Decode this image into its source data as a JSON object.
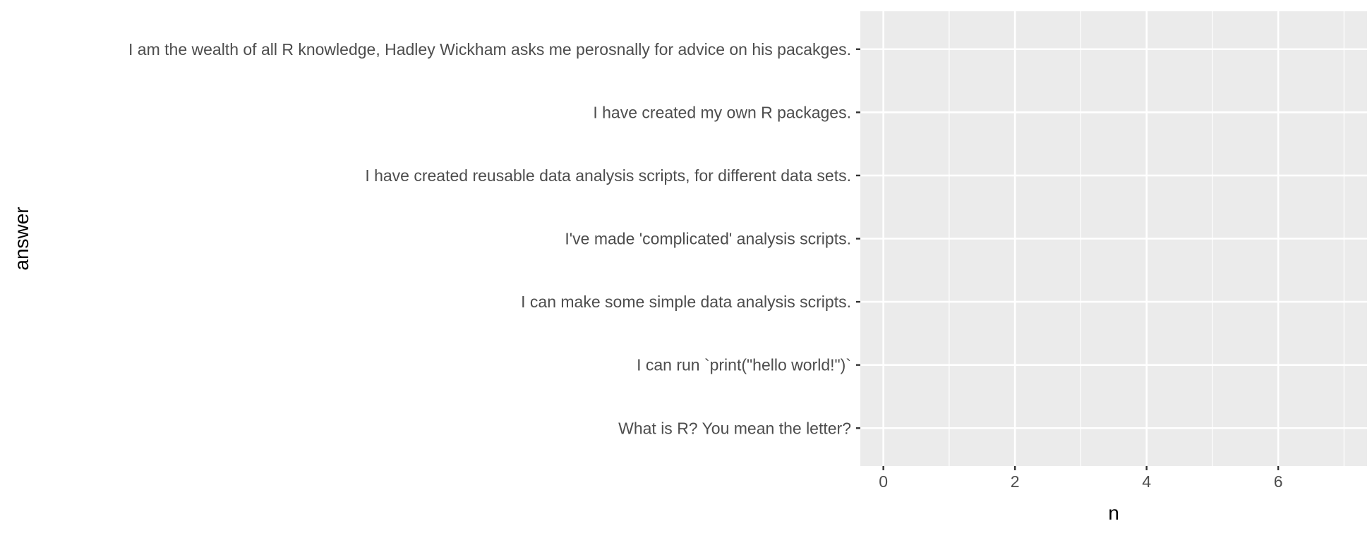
{
  "chart_data": {
    "type": "bar",
    "orientation": "horizontal",
    "categories": [
      "I am the wealth of all R knowledge, Hadley Wickham asks me perosnally for advice on his pacakges.",
      "I have created my own R packages.",
      "I have created reusable data analysis scripts, for different data sets.",
      "I've made 'complicated' analysis scripts.",
      "I can make some simple data analysis scripts.",
      "I can run `print(\"hello world!\")`",
      "What is R? You mean the letter?"
    ],
    "values": [
      null,
      null,
      null,
      null,
      null,
      null,
      null
    ],
    "xlabel": "n",
    "ylabel": "answer",
    "xlim": [
      -0.35,
      7.35
    ],
    "xticks": [
      0,
      2,
      4,
      6
    ],
    "xtick_labels": [
      "0",
      "2",
      "4",
      "6"
    ],
    "grid": true,
    "legend": "none"
  },
  "colors": {
    "panel_background": "#ebebeb",
    "grid_major": "#ffffff",
    "grid_minor": "#ffffff",
    "tick_text": "#4d4d4d",
    "axis_title": "#000000",
    "tick_mark": "#333333"
  }
}
